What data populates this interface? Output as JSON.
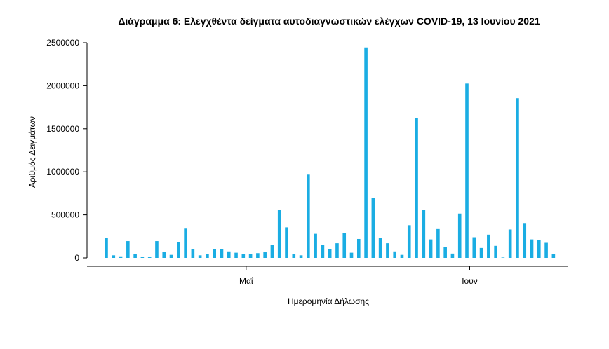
{
  "chart_data": {
    "type": "bar",
    "title": "Διάγραμμα 6: Ελεγχθέντα δείγματα αυτοδιαγνωστικών ελέγχων COVID-19, 13 Ιουνίου 2021",
    "xlabel": "Ημερομηνία Δήλωσης",
    "ylabel": "Αριθμός Δειγμάτων",
    "ylim": [
      0,
      2500000
    ],
    "yticks": [
      0,
      500000,
      1000000,
      1500000,
      2000000,
      2500000
    ],
    "ytick_labels": [
      "0",
      "500000",
      "1000000",
      "1500000",
      "2000000",
      "2500000"
    ],
    "x_ticks": [
      {
        "label": "Μαΐ",
        "date": "2021-05-01"
      },
      {
        "label": "Ιουν",
        "date": "2021-06-01"
      }
    ],
    "x_range": [
      "2021-04-12",
      "2021-06-16"
    ],
    "grid": false,
    "bar_color": "#1aade3",
    "x": [
      "2021-04-12",
      "2021-04-13",
      "2021-04-14",
      "2021-04-15",
      "2021-04-16",
      "2021-04-17",
      "2021-04-18",
      "2021-04-19",
      "2021-04-20",
      "2021-04-21",
      "2021-04-22",
      "2021-04-23",
      "2021-04-24",
      "2021-04-25",
      "2021-04-26",
      "2021-04-27",
      "2021-04-28",
      "2021-04-29",
      "2021-04-30",
      "2021-05-01",
      "2021-05-02",
      "2021-05-03",
      "2021-05-04",
      "2021-05-05",
      "2021-05-06",
      "2021-05-07",
      "2021-05-08",
      "2021-05-09",
      "2021-05-10",
      "2021-05-11",
      "2021-05-12",
      "2021-05-13",
      "2021-05-14",
      "2021-05-15",
      "2021-05-16",
      "2021-05-17",
      "2021-05-18",
      "2021-05-19",
      "2021-05-20",
      "2021-05-21",
      "2021-05-22",
      "2021-05-23",
      "2021-05-24",
      "2021-05-25",
      "2021-05-26",
      "2021-05-27",
      "2021-05-28",
      "2021-05-29",
      "2021-05-30",
      "2021-05-31",
      "2021-06-01",
      "2021-06-02",
      "2021-06-03",
      "2021-06-04",
      "2021-06-05",
      "2021-06-06",
      "2021-06-07",
      "2021-06-08",
      "2021-06-09",
      "2021-06-10",
      "2021-06-11",
      "2021-06-12",
      "2021-06-13"
    ],
    "values": [
      230000,
      30000,
      10000,
      195000,
      45000,
      8000,
      8000,
      195000,
      70000,
      35000,
      180000,
      340000,
      100000,
      30000,
      45000,
      105000,
      100000,
      75000,
      60000,
      45000,
      45000,
      55000,
      65000,
      150000,
      555000,
      355000,
      45000,
      30000,
      975000,
      280000,
      150000,
      105000,
      170000,
      285000,
      60000,
      220000,
      2445000,
      695000,
      235000,
      170000,
      75000,
      35000,
      380000,
      1625000,
      560000,
      215000,
      335000,
      130000,
      50000,
      515000,
      2025000,
      240000,
      115000,
      270000,
      140000,
      5000,
      330000,
      1855000,
      405000,
      215000,
      205000,
      175000,
      45000
    ]
  }
}
